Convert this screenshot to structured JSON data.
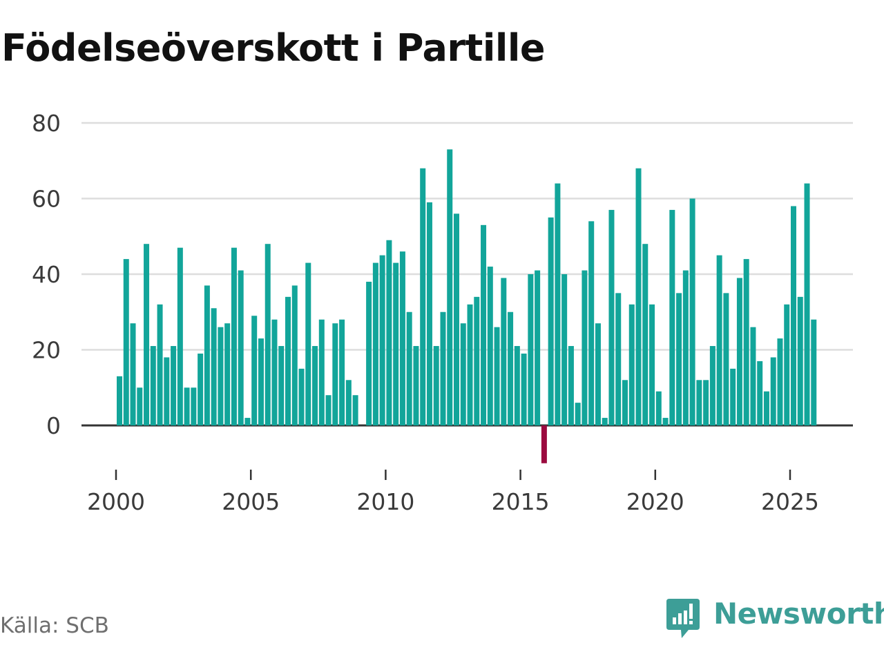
{
  "title": "Födelseöverskott i Partille",
  "source": "Källa: SCB",
  "brand": "Newsworthy",
  "colors": {
    "positive": "#12a59a",
    "negative": "#9b0a3f",
    "grid": "#dddddd",
    "axis": "#333333",
    "brand": "#3d9e97"
  },
  "chart_data": {
    "type": "bar",
    "title": "Födelseöverskott i Partille",
    "xlabel": "",
    "ylabel": "",
    "ylim": [
      -10,
      80
    ],
    "xlim": [
      1999.6,
      2026.6
    ],
    "y_ticks": [
      0,
      20,
      40,
      60,
      80
    ],
    "x_ticks": [
      2000,
      2005,
      2010,
      2015,
      2020,
      2025
    ],
    "grid": true,
    "legend": "none",
    "series": [
      {
        "name": "Födelseöverskott",
        "interval": "quarter",
        "start": 2000,
        "values": [
          13,
          44,
          27,
          10,
          48,
          21,
          32,
          18,
          21,
          47,
          10,
          10,
          19,
          37,
          31,
          26,
          27,
          47,
          41,
          2,
          29,
          23,
          48,
          28,
          21,
          34,
          37,
          15,
          43,
          21,
          28,
          8,
          27,
          28,
          12,
          8,
          null,
          38,
          43,
          45,
          49,
          43,
          46,
          30,
          21,
          68,
          59,
          21,
          30,
          73,
          56,
          27,
          32,
          34,
          53,
          42,
          26,
          39,
          30,
          21,
          19,
          40,
          41,
          -10,
          55,
          64,
          40,
          21,
          6,
          41,
          54,
          27,
          2,
          57,
          35,
          12,
          32,
          68,
          48,
          32,
          9,
          2,
          57,
          35,
          41,
          60,
          12,
          12,
          21,
          45,
          35,
          15,
          39,
          44,
          26,
          17,
          9,
          18,
          23,
          32,
          58,
          34,
          64,
          28
        ]
      }
    ]
  }
}
